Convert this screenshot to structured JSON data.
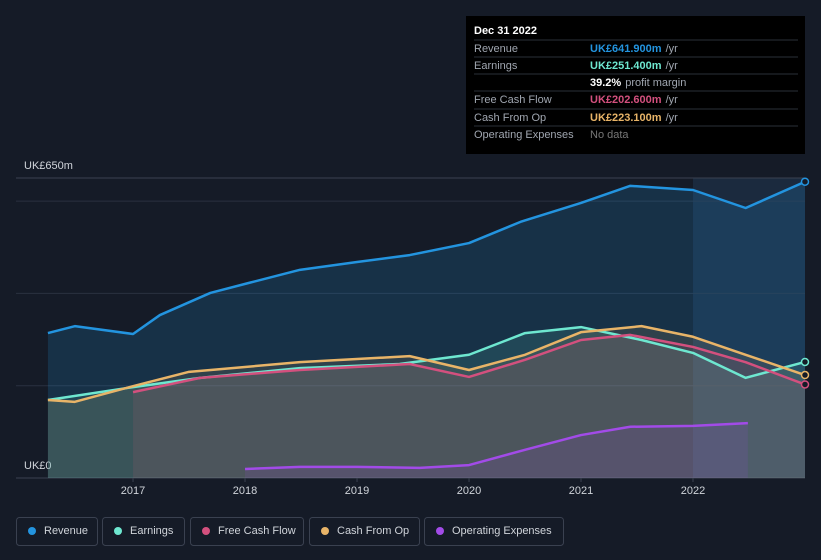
{
  "chart_data": {
    "type": "line",
    "ylim": [
      0,
      650
    ],
    "yticks": [
      {
        "value": 0,
        "label": "UK£0"
      },
      {
        "value": 650,
        "label": "UK£650m"
      }
    ],
    "ygrid": [
      200,
      400,
      600
    ],
    "xlim": [
      2015.955,
      2023.0
    ],
    "xticks": [
      2017,
      2018,
      2019,
      2020,
      2021,
      2022
    ],
    "series": [
      {
        "name": "Revenue",
        "color": "#2394df",
        "x": [
          2016.24,
          2016.48,
          2017.0,
          2017.24,
          2017.69,
          2018.04,
          2018.49,
          2019.0,
          2019.47,
          2020.0,
          2020.46,
          2021.0,
          2021.44,
          2022.0,
          2022.47,
          2023.0
        ],
        "values": [
          314,
          329,
          312,
          353,
          401,
          423,
          451,
          468,
          483,
          509,
          555,
          596,
          633,
          624,
          585,
          641.9
        ]
      },
      {
        "name": "Earnings",
        "color": "#6ee7d0",
        "x": [
          2016.24,
          2017.0,
          2017.6,
          2018.49,
          2019.38,
          2020.0,
          2020.5,
          2021.0,
          2021.54,
          2022.0,
          2022.47,
          2023.0
        ],
        "values": [
          169,
          197,
          217,
          238,
          247,
          267,
          314,
          327,
          299,
          271,
          217,
          251.4
        ]
      },
      {
        "name": "Free Cash Flow",
        "color": "#d3507e",
        "x": [
          2017.0,
          2017.6,
          2018.49,
          2019.47,
          2020.0,
          2020.5,
          2021.0,
          2021.44,
          2022.0,
          2022.47,
          2023.0
        ],
        "values": [
          186,
          217,
          234,
          247,
          219,
          256,
          299,
          310,
          284,
          251,
          202.6
        ]
      },
      {
        "name": "Cash From Op",
        "color": "#e8b468",
        "x": [
          2016.24,
          2016.48,
          2017.0,
          2017.5,
          2018.49,
          2019.47,
          2020.0,
          2020.5,
          2021.0,
          2021.54,
          2022.0,
          2022.47,
          2023.0
        ],
        "values": [
          169,
          165,
          199,
          230,
          251,
          264,
          234,
          267,
          316,
          329,
          306,
          267,
          223.1
        ]
      },
      {
        "name": "Operating Expenses",
        "color": "#a24be8",
        "x": [
          2018.0,
          2018.49,
          2019.0,
          2019.56,
          2020.0,
          2020.5,
          2021.0,
          2021.44,
          2022.0,
          2022.49
        ],
        "values": [
          19.5,
          24,
          24,
          22,
          28,
          61,
          93,
          111,
          113,
          119
        ]
      }
    ],
    "tooltip": {
      "date": "Dec 31 2022",
      "rows": [
        {
          "label": "Revenue",
          "value": "UK£641.900m",
          "unit": "/yr"
        },
        {
          "label": "Earnings",
          "value": "UK£251.400m",
          "unit": "/yr"
        },
        {
          "label": "",
          "value": "39.2%",
          "unit": "profit margin"
        },
        {
          "label": "Free Cash Flow",
          "value": "UK£202.600m",
          "unit": "/yr"
        },
        {
          "label": "Cash From Op",
          "value": "UK£223.100m",
          "unit": "/yr"
        },
        {
          "label": "Operating Expenses",
          "value": "No data",
          "unit": ""
        }
      ]
    }
  }
}
